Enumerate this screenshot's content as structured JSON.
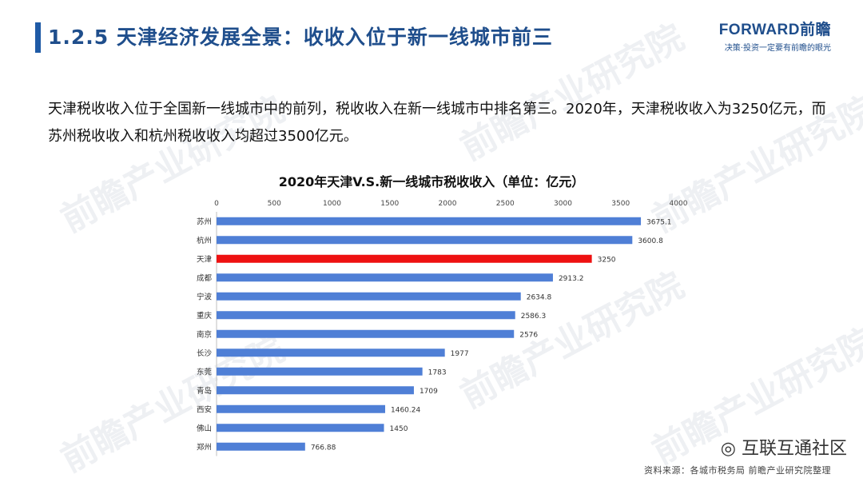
{
  "header": {
    "title": "1.2.5 天津经济发展全景：收收入位于新一线城市前三",
    "logo": "FORWARD前瞻",
    "tagline": "决策·投资一定要有前瞻的眼光"
  },
  "intro": {
    "text": "天津税收收入位于全国新一线城市中的前列，税收收入在新一线城市中排名第三。2020年，天津税收收入为3250亿元，而苏州税收收入和杭州税收收入均超过3500亿元。"
  },
  "watermark": {
    "text": "前瞻产业研究院",
    "badge": "互联互通社区"
  },
  "source": "资料来源：各城市税务局 前瞻产业研究院整理",
  "chart_data": {
    "type": "bar",
    "orientation": "horizontal",
    "title": "2020年天津V.S.新一线城市税收收入（单位：亿元）",
    "categories": [
      "苏州",
      "杭州",
      "天津",
      "成都",
      "宁波",
      "重庆",
      "南京",
      "长沙",
      "东莞",
      "青岛",
      "西安",
      "佛山",
      "郑州"
    ],
    "values": [
      3675.1,
      3600.8,
      3250,
      2913.2,
      2634.8,
      2586.3,
      2576,
      1977,
      1783,
      1709,
      1460.24,
      1450,
      766.88
    ],
    "value_labels": [
      "3675.1",
      "3600.8",
      "3250",
      "2913.2",
      "2634.8",
      "2586.3",
      "2576",
      "1977",
      "1783",
      "1709",
      "1460.24",
      "1450",
      "766.88"
    ],
    "xlim": [
      0,
      4000
    ],
    "xticks": [
      "0",
      "500",
      "1000",
      "1500",
      "2000",
      "2500",
      "3000",
      "3500",
      "4000"
    ],
    "x_axis_position": "top",
    "grid": false,
    "colors": {
      "default": "#4f7fd6",
      "highlight": "#ee1111"
    },
    "highlight_category": "天津"
  }
}
